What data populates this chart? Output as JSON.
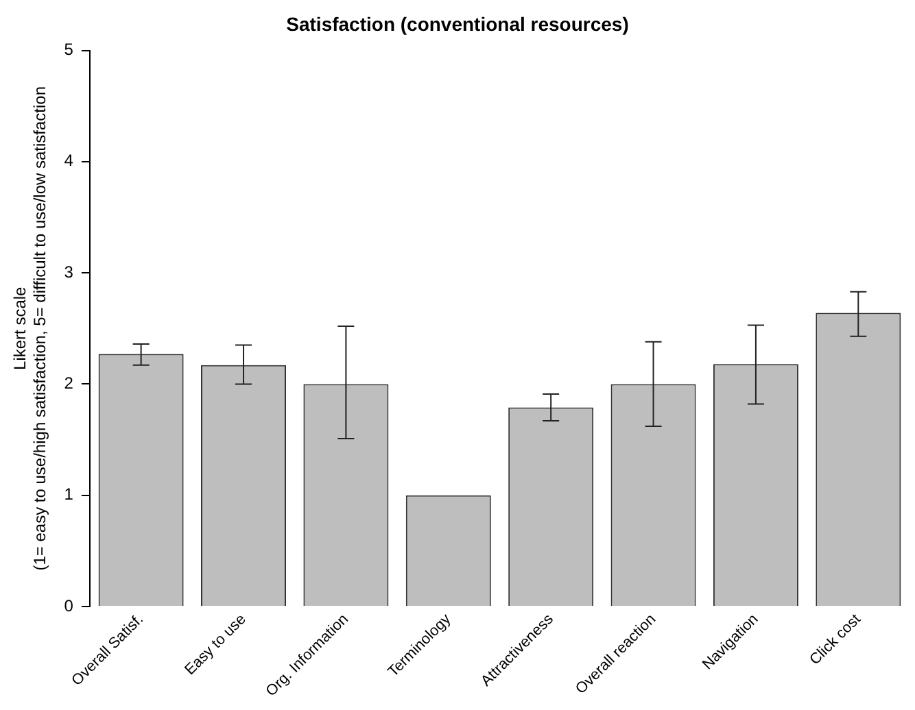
{
  "chart_data": {
    "type": "bar",
    "title": "Satisfaction (conventional resources)",
    "ylabel": "Likert scale\n(1= easy to use/high satisfaction, 5= difficult to use/low satisfaction",
    "categories": [
      "Overall Satisf.",
      "Easy to use",
      "Org. Information",
      "Terminology",
      "Attractiveness",
      "Overall reaction",
      "Navigation",
      "Click cost"
    ],
    "values": [
      2.27,
      2.17,
      2.0,
      1.0,
      1.79,
      2.0,
      2.18,
      2.64
    ],
    "errors": [
      [
        2.17,
        2.36
      ],
      [
        2.0,
        2.35
      ],
      [
        1.51,
        2.52
      ],
      null,
      [
        1.67,
        1.91
      ],
      [
        1.62,
        2.38
      ],
      [
        1.82,
        2.53
      ],
      [
        2.43,
        2.83
      ]
    ],
    "color": "#bebebe",
    "ylim": [
      0,
      5
    ],
    "yticks": [
      0,
      1,
      2,
      3,
      4,
      5
    ],
    "grid": false,
    "legend": false
  }
}
